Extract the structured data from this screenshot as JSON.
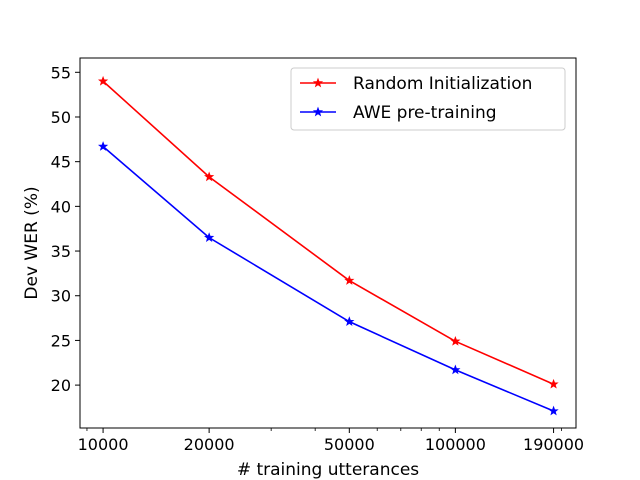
{
  "chart_data": {
    "type": "line",
    "title": "",
    "xlabel": "# training utterances",
    "ylabel": "Dev WER (%)",
    "x_scale": "log",
    "x": [
      10000,
      20000,
      50000,
      100000,
      190000
    ],
    "x_tick_labels": [
      "10000",
      "20000",
      "50000",
      "100000",
      "190000"
    ],
    "y_ticks": [
      20,
      25,
      30,
      35,
      40,
      45,
      50,
      55
    ],
    "ylim": [
      15.2,
      56.6
    ],
    "xlim": [
      8600,
      220000
    ],
    "grid": false,
    "legend_position": "top-right",
    "series": [
      {
        "name": "Random Initialization",
        "color": "#ff0000",
        "marker": "star",
        "values": [
          54.0,
          43.3,
          31.7,
          24.9,
          20.1
        ]
      },
      {
        "name": "AWE pre-training",
        "color": "#0000ff",
        "marker": "star",
        "values": [
          46.7,
          36.5,
          27.1,
          21.7,
          17.1
        ]
      }
    ]
  }
}
